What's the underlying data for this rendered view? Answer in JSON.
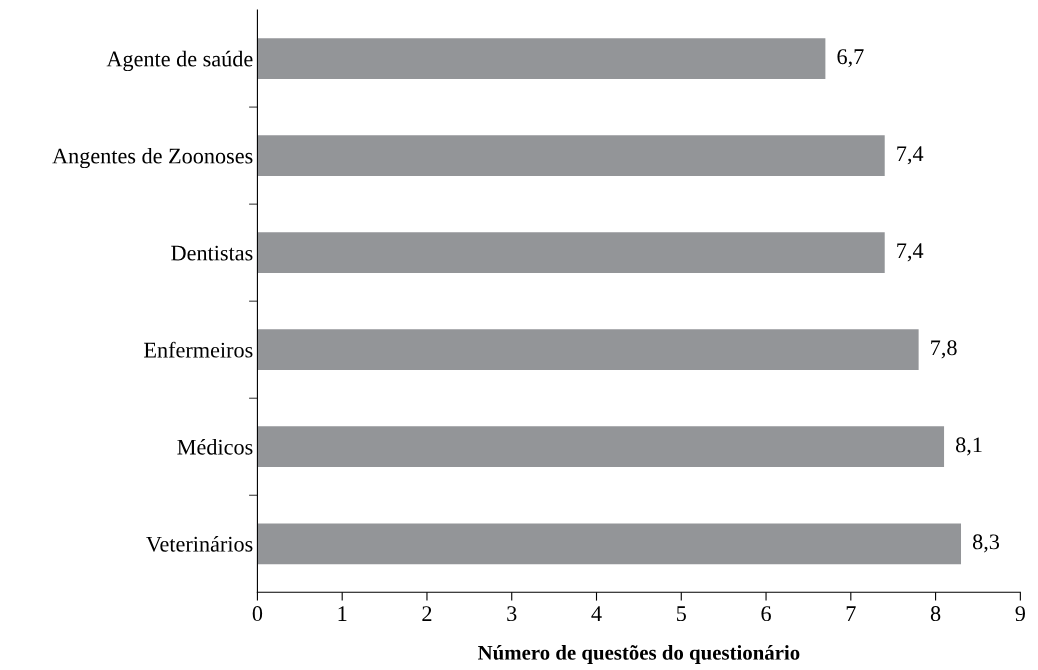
{
  "chart_data": {
    "type": "bar",
    "orientation": "horizontal",
    "xlabel": "Número de questões do questionário",
    "categories": [
      "Agente de saúde",
      "Angentes de Zoonoses",
      "Dentistas",
      "Enfermeiros",
      "Médicos",
      "Veterinários"
    ],
    "values": [
      6.7,
      7.4,
      7.4,
      7.8,
      8.1,
      8.3
    ],
    "value_labels": [
      "6,7",
      "7,4",
      "7,4",
      "7,8",
      "8,1",
      "8,3"
    ],
    "color": "#939598",
    "xlim": [
      0,
      9
    ],
    "xticks": [
      0,
      1,
      2,
      3,
      4,
      5,
      6,
      7,
      8,
      9
    ],
    "grid": false,
    "legend": false
  }
}
